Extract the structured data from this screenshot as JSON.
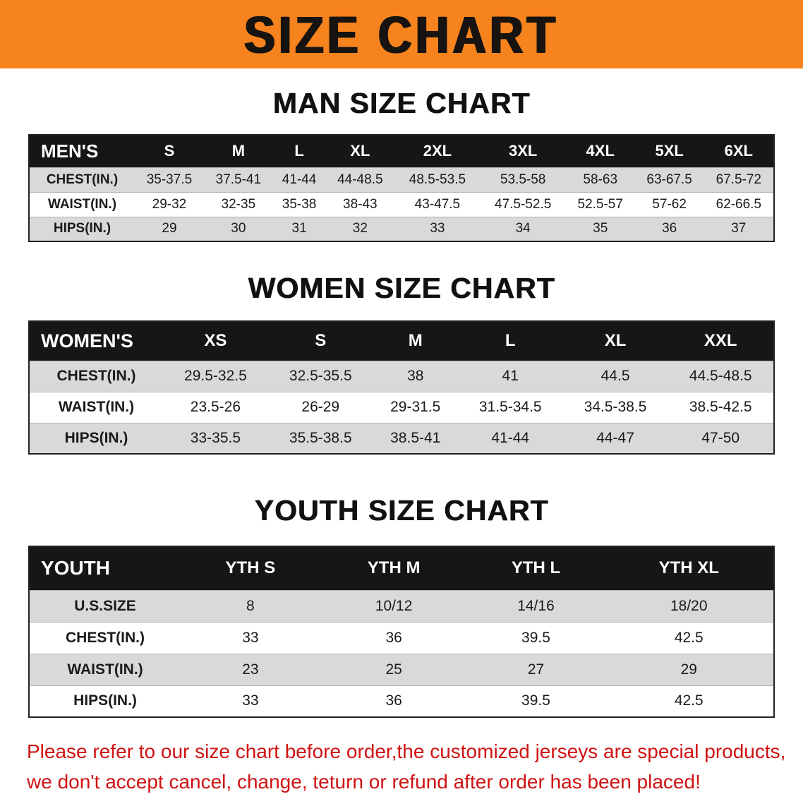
{
  "banner": {
    "title": "SIZE CHART"
  },
  "colors": {
    "banner-bg": "#f6831d",
    "header-bg": "#161616",
    "stripe": "#d9d9d9",
    "heading": "#111111",
    "disclaimer": "#d01212"
  },
  "sections": [
    {
      "heading": "MAN SIZE CHART",
      "table": {
        "header": [
          "MEN'S",
          "S",
          "M",
          "L",
          "XL",
          "2XL",
          "3XL",
          "4XL",
          "5XL",
          "6XL"
        ],
        "rows": [
          {
            "label": "CHEST(IN.)",
            "values": [
              "35-37.5",
              "37.5-41",
              "41-44",
              "44-48.5",
              "48.5-53.5",
              "53.5-58",
              "58-63",
              "63-67.5",
              "67.5-72"
            ]
          },
          {
            "label": "WAIST(IN.)",
            "values": [
              "29-32",
              "32-35",
              "35-38",
              "38-43",
              "43-47.5",
              "47.5-52.5",
              "52.5-57",
              "57-62",
              "62-66.5"
            ]
          },
          {
            "label": "HIPS(IN.)",
            "values": [
              "29",
              "30",
              "31",
              "32",
              "33",
              "34",
              "35",
              "36",
              "37"
            ]
          }
        ]
      }
    },
    {
      "heading": "WOMEN SIZE CHART",
      "table": {
        "header": [
          "WOMEN'S",
          "XS",
          "S",
          "M",
          "L",
          "XL",
          "XXL"
        ],
        "rows": [
          {
            "label": "CHEST(IN.)",
            "values": [
              "29.5-32.5",
              "32.5-35.5",
              "38",
              "41",
              "44.5",
              "44.5-48.5"
            ]
          },
          {
            "label": "WAIST(IN.)",
            "values": [
              "23.5-26",
              "26-29",
              "29-31.5",
              "31.5-34.5",
              "34.5-38.5",
              "38.5-42.5"
            ]
          },
          {
            "label": "HIPS(IN.)",
            "values": [
              "33-35.5",
              "35.5-38.5",
              "38.5-41",
              "41-44",
              "44-47",
              "47-50"
            ]
          }
        ]
      }
    },
    {
      "heading": "YOUTH SIZE CHART",
      "table": {
        "header": [
          "YOUTH",
          "YTH S",
          "YTH M",
          "YTH L",
          "YTH XL"
        ],
        "rows": [
          {
            "label": "U.S.SIZE",
            "values": [
              "8",
              "10/12",
              "14/16",
              "18/20"
            ]
          },
          {
            "label": "CHEST(IN.)",
            "values": [
              "33",
              "36",
              "39.5",
              "42.5"
            ]
          },
          {
            "label": "WAIST(IN.)",
            "values": [
              "23",
              "25",
              "27",
              "29"
            ]
          },
          {
            "label": "HIPS(IN.)",
            "values": [
              "33",
              "36",
              "39.5",
              "42.5"
            ]
          }
        ]
      }
    }
  ],
  "disclaimer": {
    "lines": [
      "Please refer to our size chart before order,the customized jerseys are special products,",
      "we don't accept cancel, change, teturn or refund after order has been placed!"
    ]
  }
}
